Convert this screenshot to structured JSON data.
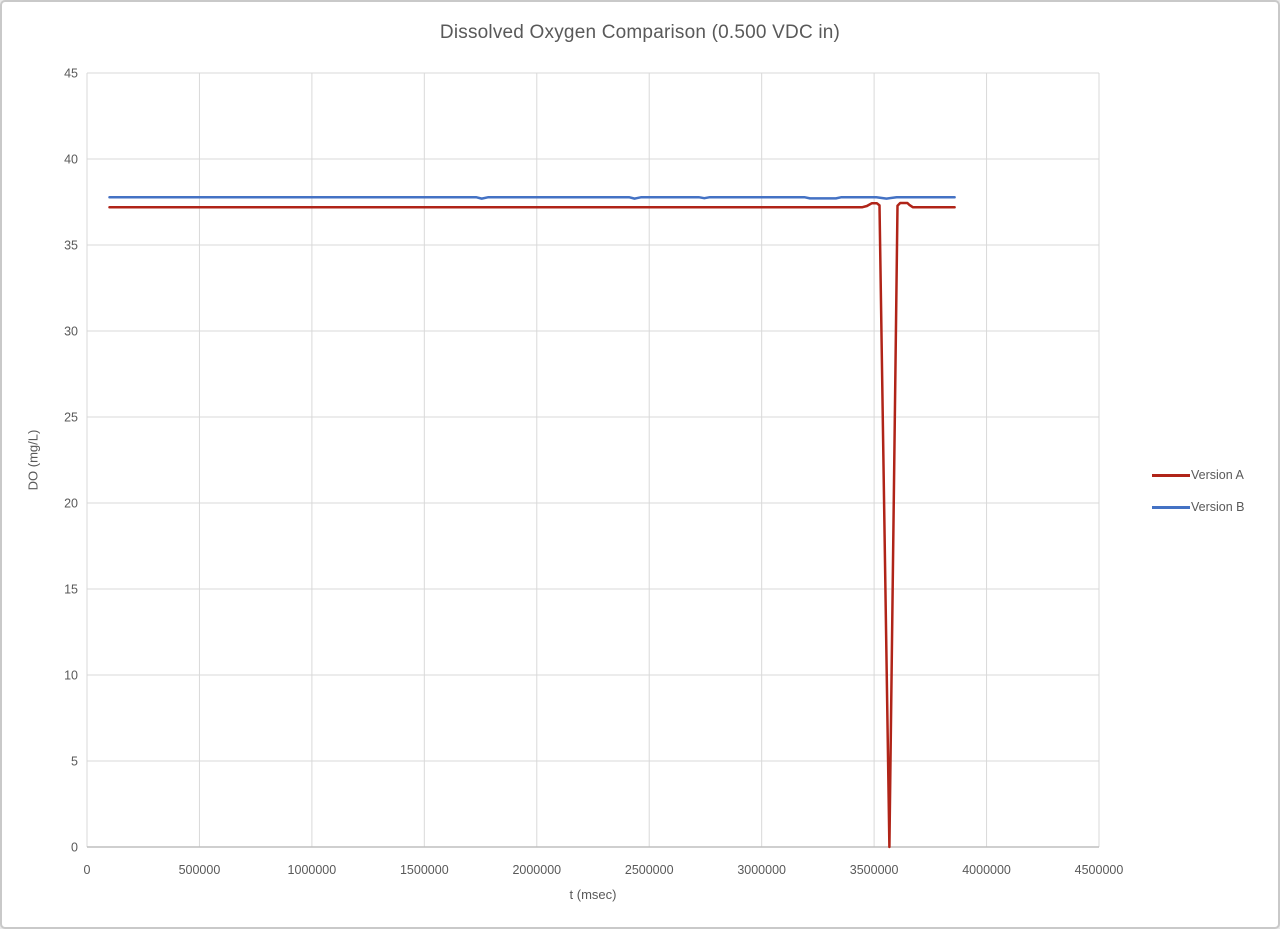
{
  "window": {
    "background": "#ffffff",
    "border_color": "#c9c9c9"
  },
  "chart_data": {
    "type": "line",
    "title": "Dissolved Oxygen Comparison (0.500 VDC in)",
    "xlabel": "t (msec)",
    "ylabel": "DO (mg/L)",
    "xlim": [
      0,
      4500000
    ],
    "ylim": [
      0,
      45
    ],
    "x_ticks": [
      0,
      500000,
      1000000,
      1500000,
      2000000,
      2500000,
      3000000,
      3500000,
      4000000,
      4500000
    ],
    "x_tick_labels": [
      "0",
      "500000",
      "1000000",
      "1500000",
      "2000000",
      "2500000",
      "3000000",
      "3500000",
      "4000000",
      "4500000"
    ],
    "y_ticks": [
      0,
      5,
      10,
      15,
      20,
      25,
      30,
      35,
      40,
      45
    ],
    "y_tick_labels": [
      "0",
      "5",
      "10",
      "15",
      "20",
      "25",
      "30",
      "35",
      "40",
      "45"
    ],
    "grid": true,
    "gridline_color": "#d9d9d9",
    "axis_line_color": "#bfbfbf",
    "text_color": "#595959",
    "legend_position": "right",
    "series": [
      {
        "name": "Version A",
        "color": "#b02418",
        "steady_value": 37.2,
        "anomaly": "spike down to 0 mg/L near t=3570000",
        "points": [
          [
            100000,
            37.2
          ],
          [
            3448000,
            37.2
          ],
          [
            3468000,
            37.27
          ],
          [
            3490000,
            37.43
          ],
          [
            3512000,
            37.43
          ],
          [
            3524000,
            37.3
          ],
          [
            3568000,
            0
          ],
          [
            3604000,
            37.28
          ],
          [
            3616000,
            37.44
          ],
          [
            3648000,
            37.44
          ],
          [
            3658000,
            37.32
          ],
          [
            3672000,
            37.2
          ],
          [
            3858000,
            37.2
          ]
        ]
      },
      {
        "name": "Version B",
        "color": "#4472c4",
        "steady_value": 37.78,
        "anomaly": "none (minor dips ~0.1 mg/L)",
        "points": [
          [
            100000,
            37.78
          ],
          [
            1730000,
            37.78
          ],
          [
            1755000,
            37.7
          ],
          [
            1785000,
            37.78
          ],
          [
            2410000,
            37.78
          ],
          [
            2435000,
            37.7
          ],
          [
            2465000,
            37.78
          ],
          [
            2720000,
            37.78
          ],
          [
            2745000,
            37.72
          ],
          [
            2770000,
            37.78
          ],
          [
            3190000,
            37.78
          ],
          [
            3215000,
            37.71
          ],
          [
            3330000,
            37.71
          ],
          [
            3355000,
            37.78
          ],
          [
            3510000,
            37.78
          ],
          [
            3555000,
            37.7
          ],
          [
            3600000,
            37.78
          ],
          [
            3858000,
            37.78
          ]
        ]
      }
    ]
  }
}
